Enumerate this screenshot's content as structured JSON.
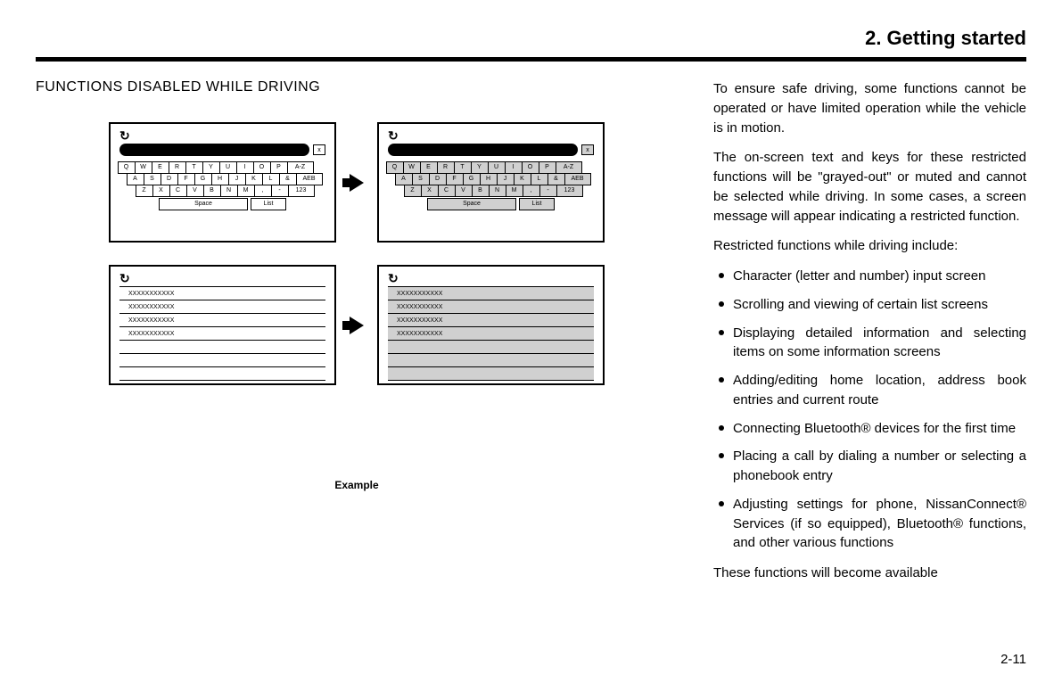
{
  "chapter": "2. Getting started",
  "section_heading": "FUNCTIONS DISABLED WHILE DRIVING",
  "example_label": "Example",
  "page_number": "2-11",
  "keyboard": {
    "row1": [
      "Q",
      "W",
      "E",
      "R",
      "T",
      "Y",
      "U",
      "I",
      "O",
      "P",
      "A-Z"
    ],
    "row2": [
      "A",
      "S",
      "D",
      "F",
      "G",
      "H",
      "J",
      "K",
      "L",
      "&",
      "AEB"
    ],
    "row3": [
      "Z",
      "X",
      "C",
      "V",
      "B",
      "N",
      "M",
      ",",
      "-",
      "123"
    ],
    "space_label": "Space",
    "list_label": "List",
    "clear_label": "x"
  },
  "list_rows": [
    "XXXXXXXXXXX",
    "XXXXXXXXXXX",
    "XXXXXXXXXXX",
    "XXXXXXXXXXX"
  ],
  "body": {
    "p1": "To ensure safe driving, some functions cannot be operated or have limited operation while the vehicle is in motion.",
    "p2": "The on-screen text and keys for these restricted functions will be \"grayed-out\" or muted and cannot be selected while driving. In some cases, a screen message will appear indicating a restricted function.",
    "p3": "Restricted functions while driving include:",
    "items": [
      "Character (letter and number) input screen",
      "Scrolling and viewing of certain list screens",
      "Displaying detailed information and selecting items on some information screens",
      "Adding/editing home location, address book entries and current route",
      "Connecting Bluetooth® devices for the first time",
      "Placing a call by dialing a number or selecting a phonebook entry",
      "Adjusting settings for phone, NissanConnect® Services (if so equipped), Bluetooth® functions, and other various functions"
    ],
    "p4": "These functions will become available"
  }
}
